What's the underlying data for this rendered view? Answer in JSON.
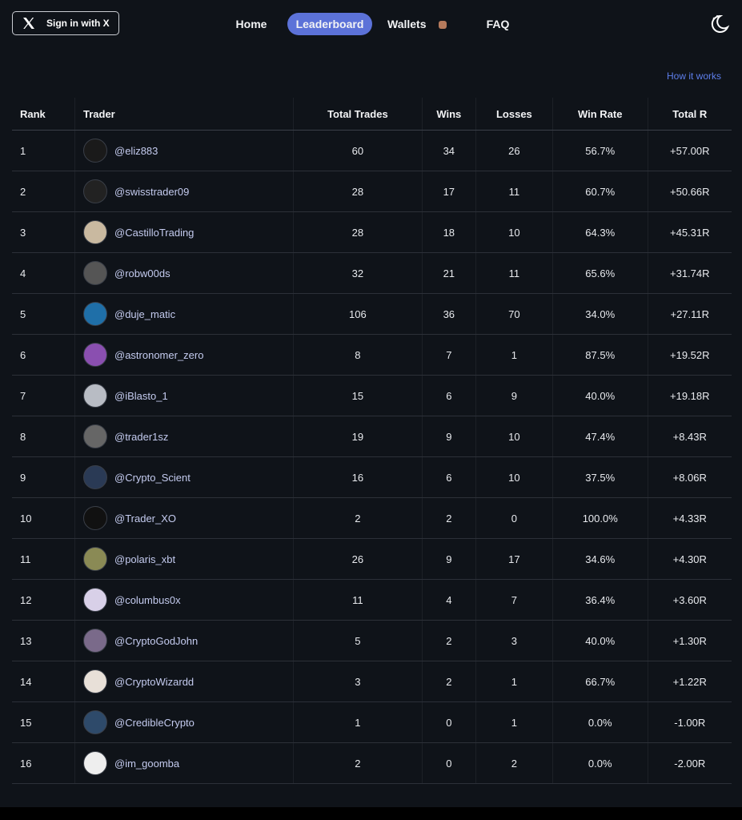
{
  "nav": {
    "sign_in": "Sign in with X",
    "links": [
      "Home",
      "Leaderboard",
      "Wallets",
      "FAQ"
    ],
    "active": "Leaderboard"
  },
  "how_it_works": "How it works",
  "table": {
    "columns": [
      "Rank",
      "Trader",
      "Total Trades",
      "Wins",
      "Losses",
      "Win Rate",
      "Total R"
    ],
    "rows": [
      [
        "1",
        "@eliz883",
        "60",
        "34",
        "26",
        "56.7%",
        "+57.00R"
      ],
      [
        "2",
        "@swisstrader09",
        "28",
        "17",
        "11",
        "60.7%",
        "+50.66R"
      ],
      [
        "3",
        "@CastilloTrading",
        "28",
        "18",
        "10",
        "64.3%",
        "+45.31R"
      ],
      [
        "4",
        "@robw00ds",
        "32",
        "21",
        "11",
        "65.6%",
        "+31.74R"
      ],
      [
        "5",
        "@duje_matic",
        "106",
        "36",
        "70",
        "34.0%",
        "+27.11R"
      ],
      [
        "6",
        "@astronomer_zero",
        "8",
        "7",
        "1",
        "87.5%",
        "+19.52R"
      ],
      [
        "7",
        "@iBlasto_1",
        "15",
        "6",
        "9",
        "40.0%",
        "+19.18R"
      ],
      [
        "8",
        "@trader1sz",
        "19",
        "9",
        "10",
        "47.4%",
        "+8.43R"
      ],
      [
        "9",
        "@Crypto_Scient",
        "16",
        "6",
        "10",
        "37.5%",
        "+8.06R"
      ],
      [
        "10",
        "@Trader_XO",
        "2",
        "2",
        "0",
        "100.0%",
        "+4.33R"
      ],
      [
        "11",
        "@polaris_xbt",
        "26",
        "9",
        "17",
        "34.6%",
        "+4.30R"
      ],
      [
        "12",
        "@columbus0x",
        "11",
        "4",
        "7",
        "36.4%",
        "+3.60R"
      ],
      [
        "13",
        "@CryptoGodJohn",
        "5",
        "2",
        "3",
        "40.0%",
        "+1.30R"
      ],
      [
        "14",
        "@CryptoWizardd",
        "3",
        "2",
        "1",
        "66.7%",
        "+1.22R"
      ],
      [
        "15",
        "@CredibleCrypto",
        "1",
        "0",
        "1",
        "0.0%",
        "-1.00R"
      ],
      [
        "16",
        "@im_goomba",
        "2",
        "0",
        "2",
        "0.0%",
        "-2.00R"
      ]
    ]
  }
}
